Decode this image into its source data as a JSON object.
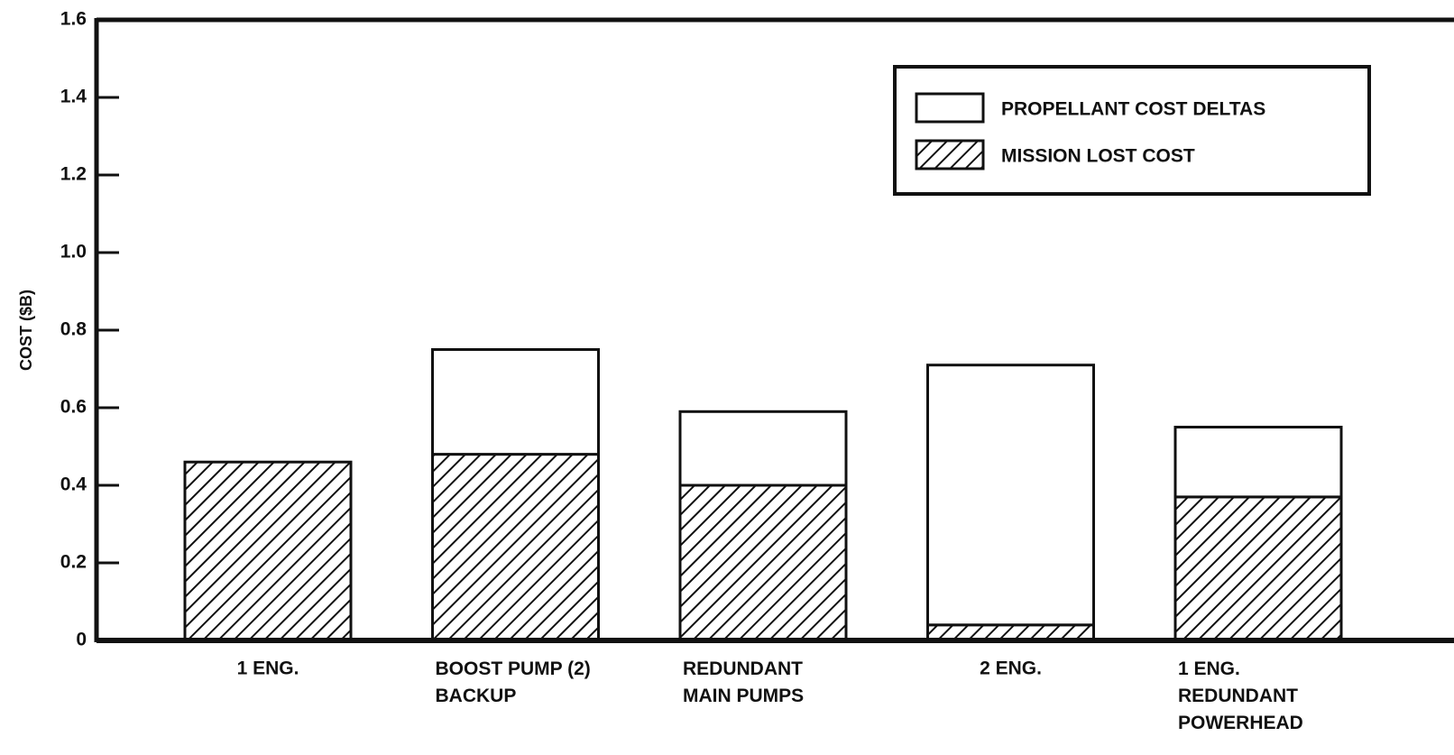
{
  "chart_data": {
    "type": "stacked_bar",
    "y_axis_label": "COST ($B)",
    "categories": [
      "1 ENG.",
      "BOOST PUMP (2)\nBACKUP",
      "REDUNDANT\nMAIN PUMPS",
      "2 ENG.",
      "1 ENG.\nREDUNDANT\nPOWERHEAD"
    ],
    "series": [
      {
        "name": "MISSION LOST COST",
        "color": "#000000",
        "hatch": true,
        "values": [
          0.46,
          0.48,
          0.4,
          0.04,
          0.37
        ]
      },
      {
        "name": "PROPELLANT COST DELTAS",
        "color": "#ffffff",
        "hatch": false,
        "values": [
          0,
          0.27,
          0.19,
          0.67,
          0.18
        ]
      }
    ],
    "ylim": [
      0,
      1.6
    ],
    "yticks": [
      0,
      0.2,
      0.4,
      0.6,
      0.8,
      {
        "value": 1,
        "label": "1.0"
      },
      1.2,
      1.4,
      1.6
    ],
    "legend": "upper right"
  }
}
